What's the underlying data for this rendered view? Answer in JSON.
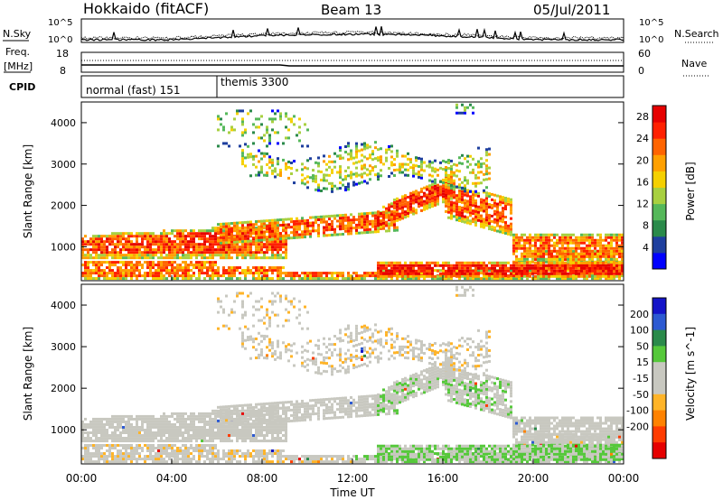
{
  "header": {
    "title": "Hokkaido (fitACF)",
    "beam": "Beam 13",
    "date": "05/Jul/2011"
  },
  "noise_panel": {
    "left_label": "N.Sky",
    "right_label": "N.Search",
    "left_ticks": [
      "10^5",
      "10^0"
    ],
    "right_ticks": [
      "10^5",
      "10^0"
    ]
  },
  "freq_panel": {
    "label_top": "Freq.",
    "label_unit": "[MHz]",
    "left_ticks": [
      "18",
      "8"
    ],
    "right_ticks": [
      "60",
      "0"
    ],
    "right_label": "Nave"
  },
  "cpid_panel": {
    "label": "CPID",
    "entries": [
      "normal (fast) 151",
      "themis 3300"
    ]
  },
  "colors": {
    "power_scale": [
      "#0000ff",
      "#1e3f9e",
      "#2a8a4a",
      "#55b85a",
      "#a8d040",
      "#f5d000",
      "#ffa000",
      "#ff6400",
      "#ff2000",
      "#e60000"
    ],
    "velocity_scale": [
      "#1414c8",
      "#2d5ad2",
      "#2a8a4a",
      "#55c83a",
      "#c8c8c0",
      "#c8c8c0",
      "#ffb428",
      "#ff8200",
      "#ff3c00",
      "#e60000"
    ]
  },
  "chart_data": [
    {
      "type": "heatmap",
      "name": "power",
      "ylabel": "Slant Range [km]",
      "xlim": [
        "00:00",
        "00:00"
      ],
      "ylim": [
        180,
        4500
      ],
      "y_ticks": [
        1000,
        2000,
        3000,
        4000
      ],
      "colorbar_label": "Power [dB]",
      "colorbar_ticks": [
        4,
        8,
        12,
        16,
        20,
        24,
        28
      ],
      "colorbar_range": [
        0,
        30
      ]
    },
    {
      "type": "heatmap",
      "name": "velocity",
      "ylabel": "Slant Range [km]",
      "xlabel": "Time UT",
      "x_ticks": [
        "00:00",
        "04:00",
        "08:00",
        "12:00",
        "16:00",
        "20:00",
        "00:00"
      ],
      "ylim": [
        180,
        4500
      ],
      "y_ticks": [
        1000,
        2000,
        3000,
        4000
      ],
      "colorbar_label": "Velocity [m s^-1]",
      "colorbar_ticks": [
        "200",
        "100",
        "50",
        "15",
        "-15",
        "-50",
        "-100",
        "-200"
      ]
    }
  ]
}
